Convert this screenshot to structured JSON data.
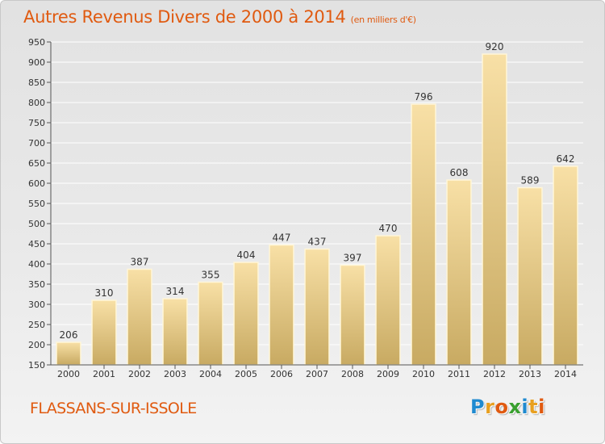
{
  "header": {
    "title": "Autres Revenus Divers de 2000 à 2014",
    "subtitle": "(en milliers d'€)"
  },
  "footer": {
    "commune": "FLASSANS-SUR-ISSOLE",
    "logo_letters": [
      "P",
      "r",
      "o",
      "x",
      "i",
      "t",
      "i"
    ],
    "logo_colors": [
      "#1f8ad0",
      "#e8a020",
      "#e05a10",
      "#3aa030",
      "#1f8ad0",
      "#e8a020",
      "#e05a10"
    ]
  },
  "colors": {
    "bar_light": "#f8e0a6",
    "bar_dark": "#c8aa62",
    "bar_edge": "#fff6d8",
    "grid": "#ffffff",
    "text": "#333333"
  },
  "chart_data": {
    "type": "bar",
    "categories": [
      "2000",
      "2001",
      "2002",
      "2003",
      "2004",
      "2005",
      "2006",
      "2007",
      "2008",
      "2009",
      "2010",
      "2011",
      "2012",
      "2013",
      "2014"
    ],
    "values": [
      206,
      310,
      387,
      314,
      355,
      404,
      447,
      437,
      397,
      470,
      796,
      608,
      920,
      589,
      642
    ],
    "ylim": [
      150,
      950
    ],
    "yticks": [
      150,
      200,
      250,
      300,
      350,
      400,
      450,
      500,
      550,
      600,
      650,
      700,
      750,
      800,
      850,
      900,
      950
    ],
    "grid": true,
    "data_labels": true
  }
}
